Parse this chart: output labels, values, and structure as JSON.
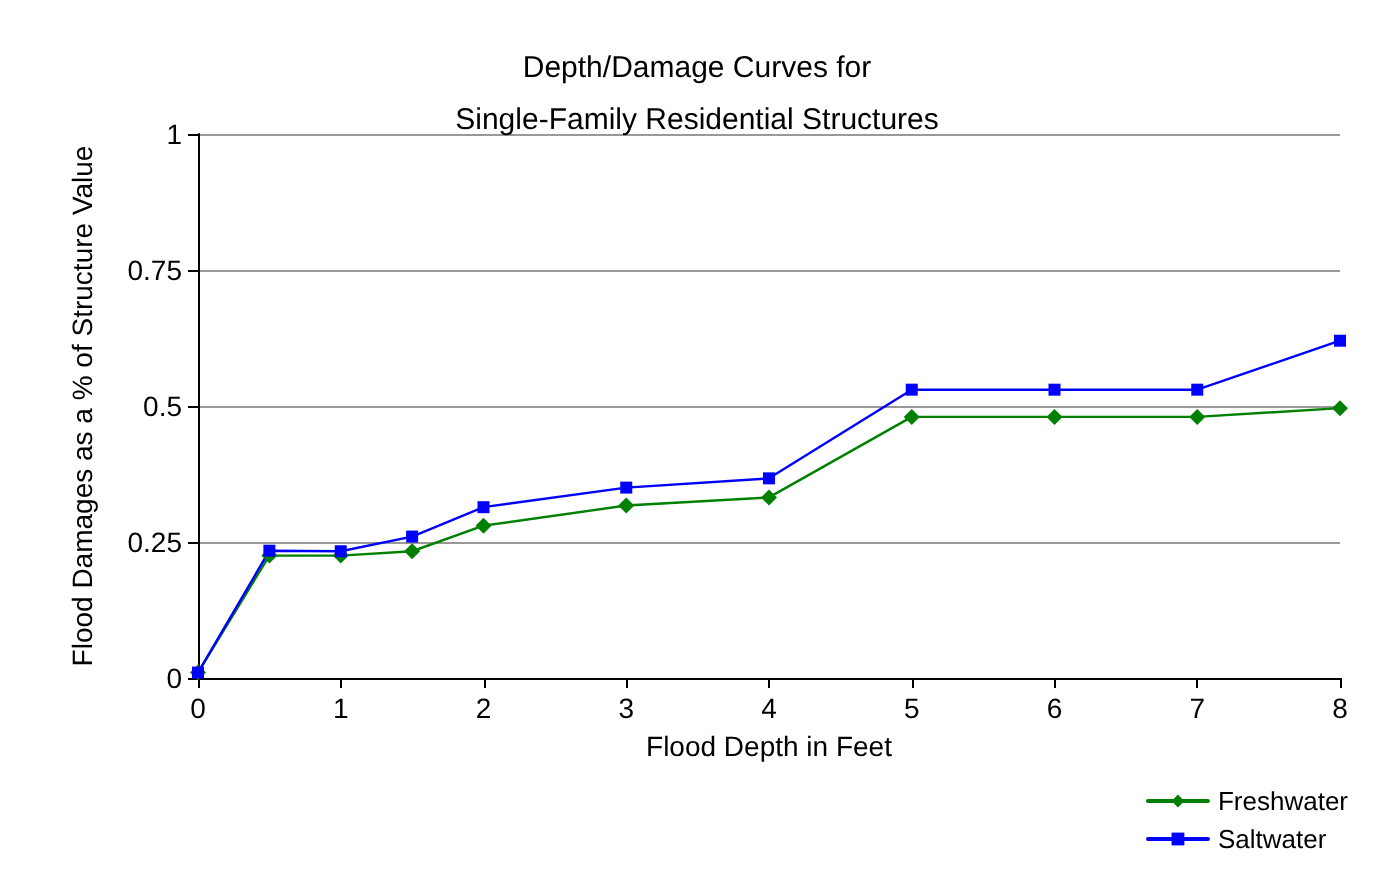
{
  "chart_data": {
    "type": "line",
    "title": "Depth/Damage Curves for\nSingle-Family Residential Structures",
    "xlabel": "Flood Depth in Feet",
    "ylabel": "Flood Damages as a % of Structure Value",
    "x": [
      0,
      0.5,
      1,
      1.5,
      2,
      3,
      4,
      5,
      6,
      7,
      8
    ],
    "series": [
      {
        "name": "Freshwater",
        "color": "#008000",
        "marker": "diamond",
        "values": [
          0.01,
          0.225,
          0.225,
          0.233,
          0.28,
          0.317,
          0.332,
          0.48,
          0.48,
          0.48,
          0.496
        ]
      },
      {
        "name": "Saltwater",
        "color": "#0000ff",
        "marker": "square",
        "values": [
          0.01,
          0.234,
          0.233,
          0.26,
          0.314,
          0.35,
          0.367,
          0.53,
          0.53,
          0.53,
          0.62
        ]
      }
    ],
    "xlim": [
      0,
      8
    ],
    "xticks": [
      0,
      1,
      2,
      3,
      4,
      5,
      6,
      7,
      8
    ],
    "ylim": [
      0,
      1
    ],
    "yticks": [
      0,
      0.25,
      0.5,
      0.75,
      1
    ],
    "grid": "y",
    "legend": "bottom right",
    "line_style": "solid"
  }
}
